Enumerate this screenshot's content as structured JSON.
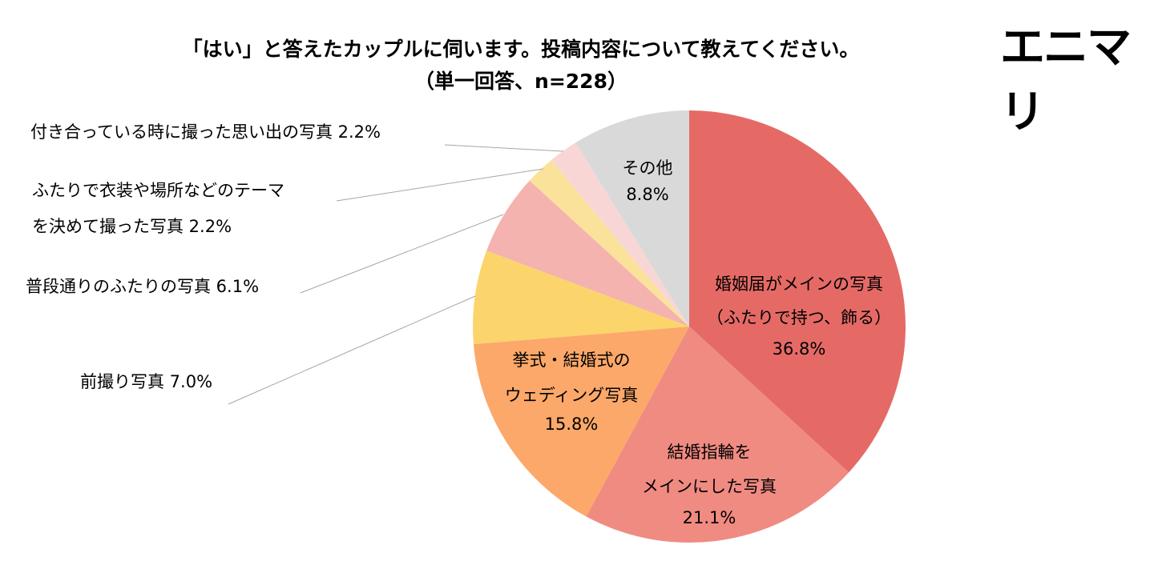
{
  "header": {
    "title_line1": "「はい」と答えたカップルに伺います。投稿内容について教えてください。",
    "title_line2": "（単一回答、n=228）",
    "logo": "エニマリ"
  },
  "chart_data": {
    "type": "pie",
    "title": "「はい」と答えたカップルに伺います。投稿内容について教えてください。（単一回答、n=228）",
    "start": "top, clockwise",
    "slices": [
      {
        "label": "婚姻届がメインの写真（ふたりで持つ、飾る）",
        "line1": "婚姻届がメインの写真",
        "line2": "（ふたりで持つ、飾る）",
        "value": 36.8,
        "value_label": "36.8%",
        "color": "#E56A66"
      },
      {
        "label": "結婚指輪をメインにした写真",
        "line1": "結婚指輪を",
        "line2": "メインにした写真",
        "value": 21.1,
        "value_label": "21.1%",
        "color": "#F08B82"
      },
      {
        "label": "挙式・結婚式のウェディング写真",
        "line1": "挙式・結婚式の",
        "line2": "ウェディング写真",
        "value": 15.8,
        "value_label": "15.8%",
        "color": "#FCA86A"
      },
      {
        "label": "前撮り写真",
        "line1": "前撮り写真 7.0%",
        "value": 7.0,
        "value_label": "7.0%",
        "color": "#FBD56B"
      },
      {
        "label": "普段通りのふたりの写真",
        "line1": "普段通りのふたりの写真 6.1%",
        "value": 6.1,
        "value_label": "6.1%",
        "color": "#F4B3AE"
      },
      {
        "label": "ふたりで衣装や場所などのテーマを決めて撮った写真",
        "line1": "ふたりで衣装や場所などのテーマ",
        "line2": "を決めて撮った写真 2.2%",
        "value": 2.2,
        "value_label": "2.2%",
        "color": "#FBE29B"
      },
      {
        "label": "付き合っている時に撮った思い出の写真",
        "line1": "付き合っている時に撮った思い出の写真 2.2%",
        "value": 2.2,
        "value_label": "2.2%",
        "color": "#F9D6D6"
      },
      {
        "label": "その他",
        "line1": "その他",
        "value": 8.8,
        "value_label": "8.8%",
        "color": "#D9D9D9"
      }
    ]
  }
}
